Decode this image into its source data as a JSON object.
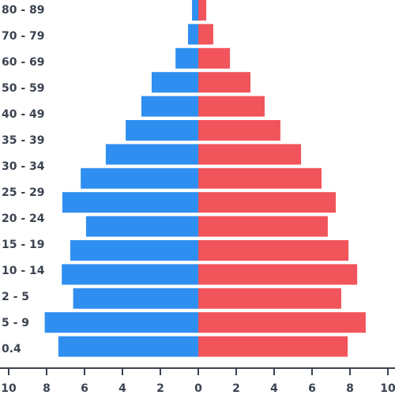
{
  "chart_data": {
    "type": "bar",
    "orientation": "horizontal",
    "categories": [
      "80 - 89",
      "70 - 79",
      "60 - 69",
      "50 - 59",
      "40 - 49",
      "35 - 39",
      "30 - 34",
      "25 - 29",
      "20 - 24",
      "15 - 19",
      "10 - 14",
      "2 - 5",
      "5 - 9",
      "0.4",
      null
    ],
    "series": [
      {
        "color": "#2e8ff0",
        "values": [
          -0.33,
          -0.54,
          -1.2,
          -2.46,
          -3.0,
          -3.83,
          -4.88,
          -6.2,
          -7.17,
          -5.92,
          -6.75,
          -7.2,
          -6.6,
          -8.1,
          -7.38
        ]
      },
      {
        "color": "#f2545b",
        "values": [
          0.42,
          0.79,
          1.67,
          2.75,
          3.5,
          4.33,
          5.42,
          6.5,
          7.25,
          6.83,
          7.92,
          8.38,
          7.54,
          8.83,
          7.88
        ]
      }
    ],
    "xlim": [
      -10,
      10
    ],
    "xticks": [
      {
        "value": -10,
        "label": "10"
      },
      {
        "value": -8,
        "label": "8"
      },
      {
        "value": -6,
        "label": "6"
      },
      {
        "value": -4,
        "label": "4"
      },
      {
        "value": -2,
        "label": "2"
      },
      0,
      2,
      4,
      6,
      8,
      10
    ]
  }
}
